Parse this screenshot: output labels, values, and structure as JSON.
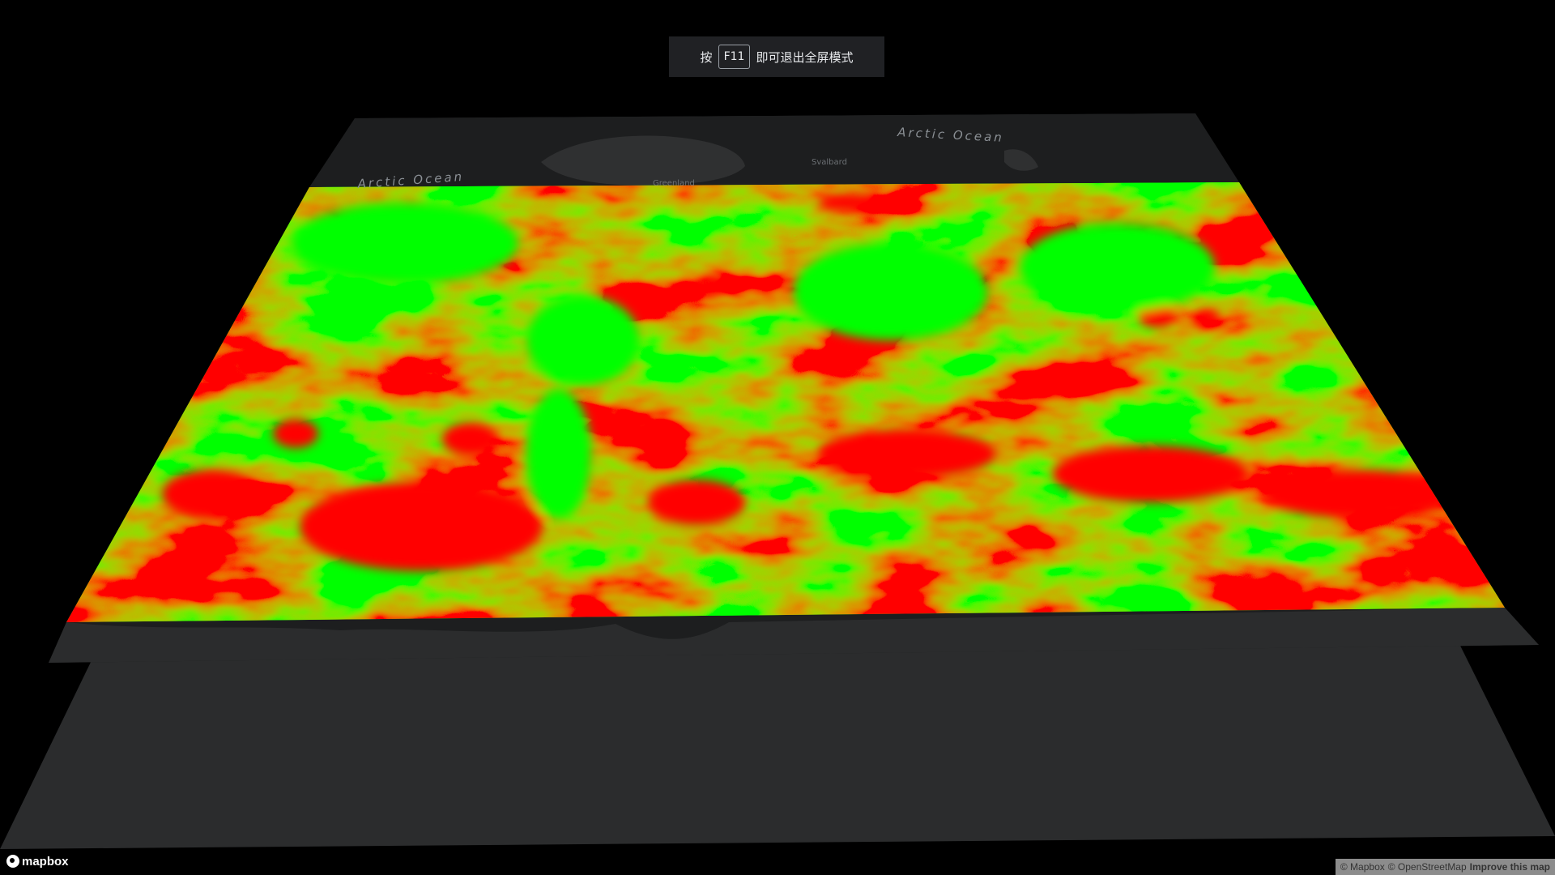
{
  "toast": {
    "prefix": "按",
    "key": "F11",
    "suffix": "即可退出全屏模式"
  },
  "map": {
    "labels": {
      "arctic_left": "Arctic Ocean",
      "arctic_right": "Arctic Ocean",
      "greenland": "Greenland",
      "svalbard": "Svalbard"
    },
    "colors": {
      "background": "#000000",
      "land": "#2b2c2d",
      "water": "#1b1c1d",
      "layer_high": "#ff0000",
      "layer_low": "#00ff00"
    }
  },
  "logo": {
    "text": "mapbox",
    "icon": "mapbox-logo-icon"
  },
  "attribution": {
    "mapbox": "© Mapbox",
    "osm": "© OpenStreetMap",
    "improve": "Improve this map"
  }
}
